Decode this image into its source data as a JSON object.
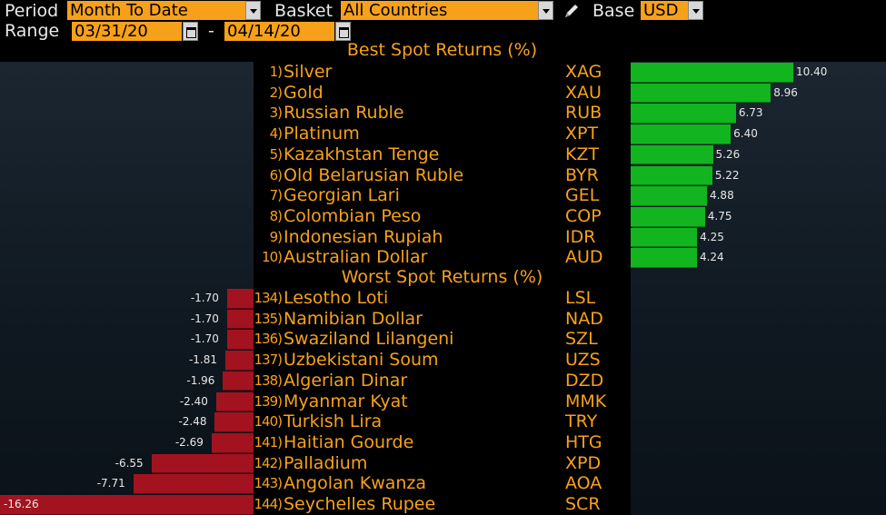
{
  "toolbar": {
    "period_label": "Period",
    "period_value": "Month To Date",
    "basket_label": "Basket",
    "basket_value": "All Countries",
    "base_label": "Base",
    "base_value": "USD",
    "range_label": "Range",
    "range_start": "03/31/20",
    "range_separator": "-",
    "range_end": "04/14/20"
  },
  "best": {
    "title": "Best Spot Returns (%)",
    "rows": [
      {
        "rank": "1)",
        "name": "Silver",
        "code": "XAG",
        "value": 10.4,
        "label": "10.40"
      },
      {
        "rank": "2)",
        "name": "Gold",
        "code": "XAU",
        "value": 8.96,
        "label": "8.96"
      },
      {
        "rank": "3)",
        "name": "Russian Ruble",
        "code": "RUB",
        "value": 6.73,
        "label": "6.73"
      },
      {
        "rank": "4)",
        "name": "Platinum",
        "code": "XPT",
        "value": 6.4,
        "label": "6.40"
      },
      {
        "rank": "5)",
        "name": "Kazakhstan Tenge",
        "code": "KZT",
        "value": 5.26,
        "label": "5.26"
      },
      {
        "rank": "6)",
        "name": "Old Belarusian Ruble",
        "code": "BYR",
        "value": 5.22,
        "label": "5.22"
      },
      {
        "rank": "7)",
        "name": "Georgian Lari",
        "code": "GEL",
        "value": 4.88,
        "label": "4.88"
      },
      {
        "rank": "8)",
        "name": "Colombian Peso",
        "code": "COP",
        "value": 4.75,
        "label": "4.75"
      },
      {
        "rank": "9)",
        "name": "Indonesian Rupiah",
        "code": "IDR",
        "value": 4.25,
        "label": "4.25"
      },
      {
        "rank": "10)",
        "name": "Australian Dollar",
        "code": "AUD",
        "value": 4.24,
        "label": "4.24"
      }
    ]
  },
  "worst": {
    "title": "Worst Spot Returns (%)",
    "rows": [
      {
        "rank": "134)",
        "name": "Lesotho Loti",
        "code": "LSL",
        "value": -1.7,
        "label": "-1.70"
      },
      {
        "rank": "135)",
        "name": "Namibian Dollar",
        "code": "NAD",
        "value": -1.7,
        "label": "-1.70"
      },
      {
        "rank": "136)",
        "name": "Swaziland Lilangeni",
        "code": "SZL",
        "value": -1.7,
        "label": "-1.70"
      },
      {
        "rank": "137)",
        "name": "Uzbekistani Soum",
        "code": "UZS",
        "value": -1.81,
        "label": "-1.81"
      },
      {
        "rank": "138)",
        "name": "Algerian Dinar",
        "code": "DZD",
        "value": -1.96,
        "label": "-1.96"
      },
      {
        "rank": "139)",
        "name": "Myanmar Kyat",
        "code": "MMK",
        "value": -2.4,
        "label": "-2.40"
      },
      {
        "rank": "140)",
        "name": "Turkish Lira",
        "code": "TRY",
        "value": -2.48,
        "label": "-2.48"
      },
      {
        "rank": "141)",
        "name": "Haitian Gourde",
        "code": "HTG",
        "value": -2.69,
        "label": "-2.69"
      },
      {
        "rank": "142)",
        "name": "Palladium",
        "code": "XPD",
        "value": -6.55,
        "label": "-6.55"
      },
      {
        "rank": "143)",
        "name": "Angolan Kwanza",
        "code": "AOA",
        "value": -7.71,
        "label": "-7.71"
      },
      {
        "rank": "144)",
        "name": "Seychelles Rupee",
        "code": "SCR",
        "value": -16.26,
        "label": "-16.26"
      }
    ]
  },
  "colors": {
    "accent": "#f7a11a",
    "positive_bar": "#12b41f",
    "negative_bar": "#a2131f"
  }
}
